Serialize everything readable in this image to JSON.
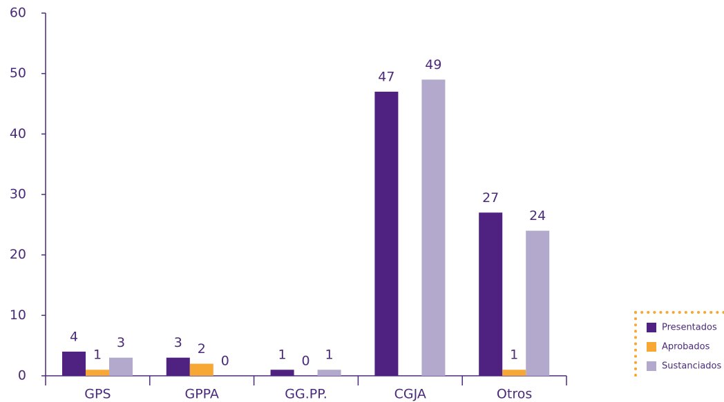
{
  "chart_data": {
    "type": "bar",
    "categories": [
      "GPS",
      "GPPA",
      "GG.PP.",
      "CGJA",
      "Otros"
    ],
    "series": [
      {
        "name": "Presentados",
        "color": "#4f2180",
        "values": [
          4,
          3,
          1,
          47,
          27
        ]
      },
      {
        "name": "Aprobados",
        "color": "#f7a734",
        "values": [
          1,
          2,
          0,
          null,
          1
        ]
      },
      {
        "name": "Sustanciados",
        "color": "#b3a9cd",
        "values": [
          3,
          0,
          1,
          49,
          24
        ]
      }
    ],
    "ylim": [
      0,
      60
    ],
    "yticks": [
      0,
      10,
      20,
      30,
      40,
      50,
      60
    ],
    "legend": "right"
  }
}
